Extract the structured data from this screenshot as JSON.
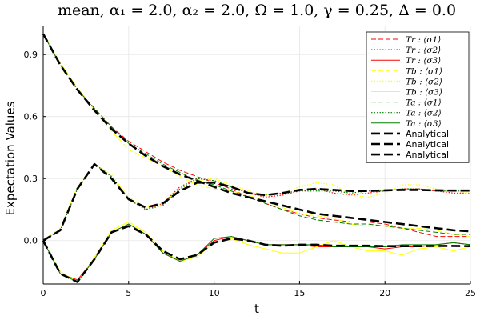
{
  "chart_data": {
    "type": "line",
    "title": "mean, α₁ = 2.0, α₂ = 2.0, Ω = 1.0, γ = 0.25, Δ = 0.0",
    "xlabel": "t",
    "ylabel": "Expectation Values",
    "xlim": [
      0,
      25
    ],
    "ylim": [
      -0.21,
      1.04
    ],
    "xticks": [
      0,
      5,
      10,
      15,
      20,
      25
    ],
    "yticks": [
      0.0,
      0.3,
      0.6,
      0.9
    ],
    "xtick_labels": [
      "0",
      "5",
      "10",
      "15",
      "20",
      "25"
    ],
    "ytick_labels": [
      "0.0",
      "0.3",
      "0.6",
      "0.9"
    ],
    "grid": true,
    "legend_position": "top-right",
    "series": [
      {
        "name": "Tr : ⟨σ1⟩",
        "color": "#ff0000",
        "dash": "dash",
        "x": [
          0,
          1,
          2,
          3,
          4,
          5,
          6,
          7,
          8,
          9,
          10,
          11,
          12,
          13,
          14,
          15,
          16,
          17,
          18,
          19,
          20,
          21,
          22,
          23,
          24,
          25
        ],
        "y": [
          1.0,
          0.85,
          0.73,
          0.64,
          0.55,
          0.48,
          0.43,
          0.38,
          0.34,
          0.31,
          0.28,
          0.25,
          0.21,
          0.18,
          0.15,
          0.13,
          0.11,
          0.1,
          0.09,
          0.09,
          0.08,
          0.06,
          0.04,
          0.02,
          0.02,
          0.02
        ]
      },
      {
        "name": "Tr : ⟨σ2⟩",
        "color": "#ff0000",
        "dash": "dot",
        "x": [
          0,
          1,
          2,
          3,
          4,
          5,
          6,
          7,
          8,
          9,
          10,
          11,
          12,
          13,
          14,
          15,
          16,
          17,
          18,
          19,
          20,
          21,
          22,
          23,
          24,
          25
        ],
        "y": [
          0.0,
          0.05,
          0.25,
          0.37,
          0.31,
          0.2,
          0.15,
          0.18,
          0.26,
          0.3,
          0.29,
          0.26,
          0.23,
          0.21,
          0.22,
          0.24,
          0.25,
          0.23,
          0.22,
          0.23,
          0.24,
          0.25,
          0.25,
          0.24,
          0.23,
          0.23
        ]
      },
      {
        "name": "Tr : ⟨σ3⟩",
        "color": "#ff0000",
        "dash": "solid",
        "x": [
          0,
          1,
          2,
          3,
          4,
          5,
          6,
          7,
          8,
          9,
          10,
          11,
          12,
          13,
          14,
          15,
          16,
          17,
          18,
          19,
          20,
          21,
          22,
          23,
          24,
          25
        ],
        "y": [
          0.0,
          -0.16,
          -0.19,
          -0.09,
          0.04,
          0.08,
          0.03,
          -0.06,
          -0.1,
          -0.07,
          0.0,
          0.02,
          0.0,
          -0.02,
          -0.02,
          -0.02,
          -0.03,
          -0.03,
          -0.03,
          -0.03,
          -0.04,
          -0.03,
          -0.03,
          -0.02,
          -0.01,
          -0.02
        ]
      },
      {
        "name": "Tb : ⟨σ1⟩",
        "color": "#ffff00",
        "dash": "dash",
        "x": [
          0,
          1,
          2,
          3,
          4,
          5,
          6,
          7,
          8,
          9,
          10,
          11,
          12,
          13,
          14,
          15,
          16,
          17,
          18,
          19,
          20,
          21,
          22,
          23,
          24,
          25
        ],
        "y": [
          1.0,
          0.86,
          0.74,
          0.63,
          0.53,
          0.44,
          0.4,
          0.36,
          0.31,
          0.27,
          0.25,
          0.24,
          0.22,
          0.19,
          0.16,
          0.13,
          0.12,
          0.11,
          0.08,
          0.07,
          0.07,
          0.06,
          0.06,
          0.05,
          0.03,
          0.02
        ]
      },
      {
        "name": "Tb : ⟨σ2⟩",
        "color": "#ffff00",
        "dash": "dot",
        "x": [
          0,
          1,
          2,
          3,
          4,
          5,
          6,
          7,
          8,
          9,
          10,
          11,
          12,
          13,
          14,
          15,
          16,
          17,
          18,
          19,
          20,
          21,
          22,
          23,
          24,
          25
        ],
        "y": [
          0.0,
          0.06,
          0.26,
          0.37,
          0.32,
          0.21,
          0.16,
          0.18,
          0.25,
          0.29,
          0.3,
          0.27,
          0.24,
          0.22,
          0.23,
          0.26,
          0.28,
          0.27,
          0.22,
          0.21,
          0.23,
          0.27,
          0.27,
          0.25,
          0.24,
          0.23
        ]
      },
      {
        "name": "Tb : ⟨σ3⟩",
        "color": "#ffff00",
        "dash": "solid",
        "x": [
          0,
          1,
          2,
          3,
          4,
          5,
          6,
          7,
          8,
          9,
          10,
          11,
          12,
          13,
          14,
          15,
          16,
          17,
          18,
          19,
          20,
          21,
          22,
          23,
          24,
          25
        ],
        "y": [
          0.0,
          -0.15,
          -0.2,
          -0.08,
          0.05,
          0.09,
          0.04,
          -0.05,
          -0.1,
          -0.08,
          -0.01,
          0.01,
          -0.02,
          -0.04,
          -0.06,
          -0.06,
          -0.03,
          0.0,
          -0.03,
          -0.05,
          -0.05,
          -0.07,
          -0.04,
          -0.03,
          -0.05,
          -0.03
        ]
      },
      {
        "name": "Ta : ⟨σ1⟩",
        "color": "#008000",
        "dash": "dash",
        "x": [
          0,
          1,
          2,
          3,
          4,
          5,
          6,
          7,
          8,
          9,
          10,
          11,
          12,
          13,
          14,
          15,
          16,
          17,
          18,
          19,
          20,
          21,
          22,
          23,
          24,
          25
        ],
        "y": [
          1.0,
          0.85,
          0.73,
          0.64,
          0.55,
          0.47,
          0.42,
          0.37,
          0.33,
          0.29,
          0.27,
          0.24,
          0.21,
          0.18,
          0.15,
          0.12,
          0.1,
          0.09,
          0.08,
          0.08,
          0.07,
          0.06,
          0.05,
          0.04,
          0.03,
          0.03
        ]
      },
      {
        "name": "Ta : ⟨σ2⟩",
        "color": "#008000",
        "dash": "dot",
        "x": [
          0,
          1,
          2,
          3,
          4,
          5,
          6,
          7,
          8,
          9,
          10,
          11,
          12,
          13,
          14,
          15,
          16,
          17,
          18,
          19,
          20,
          21,
          22,
          23,
          24,
          25
        ],
        "y": [
          0.0,
          0.05,
          0.25,
          0.37,
          0.31,
          0.2,
          0.15,
          0.17,
          0.25,
          0.3,
          0.29,
          0.26,
          0.23,
          0.22,
          0.23,
          0.24,
          0.24,
          0.24,
          0.23,
          0.24,
          0.24,
          0.25,
          0.25,
          0.24,
          0.24,
          0.24
        ]
      },
      {
        "name": "Ta : ⟨σ3⟩",
        "color": "#008000",
        "dash": "solid",
        "x": [
          0,
          1,
          2,
          3,
          4,
          5,
          6,
          7,
          8,
          9,
          10,
          11,
          12,
          13,
          14,
          15,
          16,
          17,
          18,
          19,
          20,
          21,
          22,
          23,
          24,
          25
        ],
        "y": [
          0.0,
          -0.16,
          -0.2,
          -0.09,
          0.04,
          0.08,
          0.03,
          -0.06,
          -0.1,
          -0.07,
          0.01,
          0.02,
          0.0,
          -0.02,
          -0.02,
          -0.02,
          -0.02,
          -0.03,
          -0.03,
          -0.03,
          -0.03,
          -0.02,
          -0.02,
          -0.02,
          -0.01,
          -0.02
        ]
      },
      {
        "name": "Analytical",
        "color": "#000000",
        "dash": "longdash",
        "x": [
          0,
          1,
          2,
          3,
          4,
          5,
          6,
          7,
          8,
          9,
          10,
          11,
          12,
          13,
          14,
          15,
          16,
          17,
          18,
          19,
          20,
          21,
          22,
          23,
          24,
          25
        ],
        "y": [
          1.0,
          0.85,
          0.73,
          0.63,
          0.54,
          0.47,
          0.41,
          0.36,
          0.32,
          0.29,
          0.26,
          0.23,
          0.21,
          0.19,
          0.17,
          0.15,
          0.13,
          0.12,
          0.11,
          0.1,
          0.09,
          0.08,
          0.07,
          0.06,
          0.05,
          0.045
        ]
      },
      {
        "name": "Analytical",
        "color": "#000000",
        "dash": "longdash",
        "x": [
          0,
          1,
          2,
          3,
          4,
          5,
          6,
          7,
          8,
          9,
          10,
          11,
          12,
          13,
          14,
          15,
          16,
          17,
          18,
          19,
          20,
          21,
          22,
          23,
          24,
          25
        ],
        "y": [
          0.0,
          0.05,
          0.25,
          0.37,
          0.3,
          0.2,
          0.16,
          0.18,
          0.24,
          0.28,
          0.28,
          0.26,
          0.23,
          0.22,
          0.23,
          0.245,
          0.25,
          0.245,
          0.24,
          0.24,
          0.243,
          0.245,
          0.245,
          0.243,
          0.242,
          0.242
        ]
      },
      {
        "name": "Analytical",
        "color": "#000000",
        "dash": "longdash",
        "x": [
          0,
          1,
          2,
          3,
          4,
          5,
          6,
          7,
          8,
          9,
          10,
          11,
          12,
          13,
          14,
          15,
          16,
          17,
          18,
          19,
          20,
          21,
          22,
          23,
          24,
          25
        ],
        "y": [
          0.0,
          -0.16,
          -0.2,
          -0.09,
          0.04,
          0.07,
          0.03,
          -0.05,
          -0.09,
          -0.07,
          -0.01,
          0.01,
          0.0,
          -0.02,
          -0.025,
          -0.02,
          -0.02,
          -0.025,
          -0.025,
          -0.025,
          -0.027,
          -0.027,
          -0.027,
          -0.026,
          -0.026,
          -0.027
        ]
      }
    ]
  }
}
